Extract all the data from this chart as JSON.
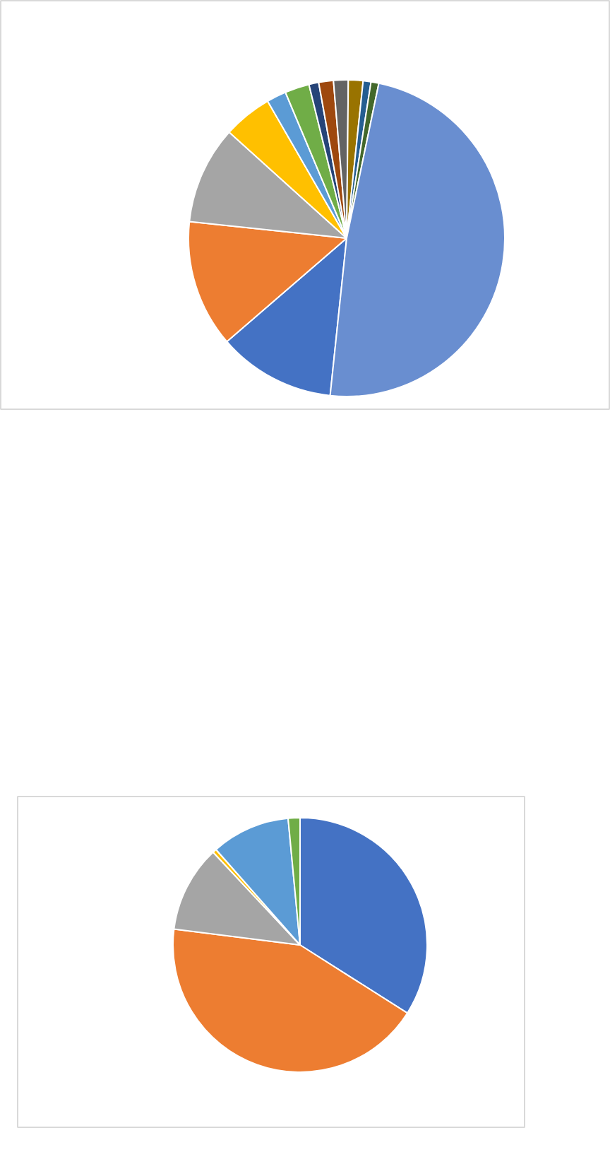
{
  "chart_data": [
    {
      "type": "pie",
      "categories": [
        null,
        null,
        null,
        null,
        null,
        null,
        null,
        null,
        null,
        null,
        null,
        null,
        null
      ],
      "values": [
        12,
        13,
        10,
        5,
        2,
        2.5,
        1,
        1.5,
        1.5,
        1.5,
        0.8,
        0.8,
        48.4
      ],
      "colors": [
        "#4472c4",
        "#ed7d31",
        "#a5a5a5",
        "#ffc000",
        "#5b9bd5",
        "#70ad47",
        "#264478",
        "#9e480e",
        "#636363",
        "#997300",
        "#255e91",
        "#43682b",
        "#698ed0"
      ]
    },
    {
      "type": "pie",
      "categories": [
        null,
        null,
        null,
        null,
        null,
        null
      ],
      "values": [
        34,
        43,
        11,
        0.5,
        10,
        1.5
      ],
      "colors": [
        "#4472c4",
        "#ed7d31",
        "#a5a5a5",
        "#ffc000",
        "#5b9bd5",
        "#70ad47"
      ]
    }
  ]
}
